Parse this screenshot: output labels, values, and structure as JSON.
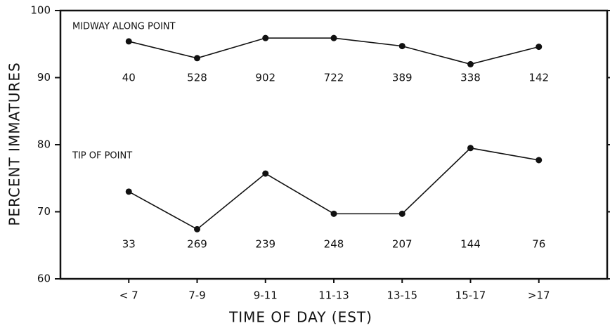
{
  "chart_data": {
    "type": "line",
    "xlabel": "TIME OF DAY (EST)",
    "ylabel": "PERCENT IMMATURES",
    "categories": [
      "< 7",
      "7-9",
      "9-11",
      "11-13",
      "13-15",
      "15-17",
      ">17"
    ],
    "series": [
      {
        "name": "MIDWAY ALONG POINT",
        "color": "#111111",
        "values": [
          95.4,
          92.9,
          95.9,
          95.9,
          94.7,
          92.0,
          94.6
        ],
        "sample_sizes": [
          40,
          528,
          902,
          722,
          389,
          338,
          142
        ]
      },
      {
        "name": "TIP OF POINT",
        "color": "#111111",
        "values": [
          73.0,
          67.4,
          75.7,
          69.7,
          69.7,
          79.5,
          77.7
        ],
        "sample_sizes": [
          33,
          269,
          239,
          248,
          207,
          144,
          76
        ]
      }
    ],
    "ylim": [
      60,
      100
    ],
    "yticks": [
      60,
      70,
      80,
      90,
      100
    ],
    "grid": false
  }
}
